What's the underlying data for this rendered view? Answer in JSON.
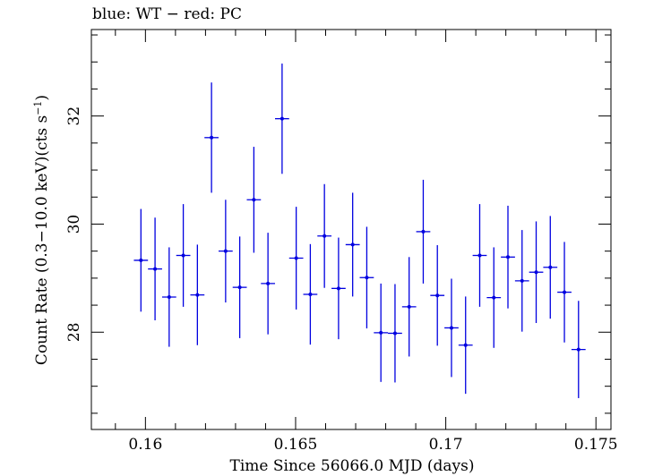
{
  "chart_data": {
    "type": "scatter",
    "title": "blue: WT − red: PC",
    "xlabel": "Time Since 56066.0 MJD (days)",
    "ylabel_main": "Count Rate (0.3−10.0 keV)(cts s",
    "ylabel_sup": "−1",
    "ylabel_end": ")",
    "xlim": [
      0.1582,
      0.1755
    ],
    "ylim": [
      26.2,
      33.6
    ],
    "xticks": [
      0.16,
      0.165,
      0.17,
      0.175
    ],
    "xtick_labels": [
      "0.16",
      "0.165",
      "0.17",
      "0.175"
    ],
    "yticks": [
      28,
      30,
      32
    ],
    "ytick_labels": [
      "28",
      "30",
      "32"
    ],
    "grid": false,
    "series": [
      {
        "color": "#0000e0",
        "x_halfwidth": 0.000235,
        "points": [
          {
            "x": 0.15985,
            "y": 29.33,
            "err": 0.95
          },
          {
            "x": 0.16032,
            "y": 29.17,
            "err": 0.95
          },
          {
            "x": 0.16079,
            "y": 28.65,
            "err": 0.92
          },
          {
            "x": 0.16126,
            "y": 29.42,
            "err": 0.95
          },
          {
            "x": 0.16173,
            "y": 28.69,
            "err": 0.93
          },
          {
            "x": 0.1622,
            "y": 31.6,
            "err": 1.02
          },
          {
            "x": 0.16267,
            "y": 29.5,
            "err": 0.95
          },
          {
            "x": 0.16314,
            "y": 28.83,
            "err": 0.94
          },
          {
            "x": 0.16361,
            "y": 30.45,
            "err": 0.98
          },
          {
            "x": 0.16408,
            "y": 28.9,
            "err": 0.94
          },
          {
            "x": 0.16455,
            "y": 31.95,
            "err": 1.02
          },
          {
            "x": 0.16502,
            "y": 29.37,
            "err": 0.95
          },
          {
            "x": 0.16549,
            "y": 28.7,
            "err": 0.93
          },
          {
            "x": 0.16596,
            "y": 29.78,
            "err": 0.96
          },
          {
            "x": 0.16643,
            "y": 28.81,
            "err": 0.94
          },
          {
            "x": 0.1669,
            "y": 29.62,
            "err": 0.96
          },
          {
            "x": 0.16737,
            "y": 29.01,
            "err": 0.94
          },
          {
            "x": 0.16784,
            "y": 27.99,
            "err": 0.91
          },
          {
            "x": 0.16831,
            "y": 27.98,
            "err": 0.91
          },
          {
            "x": 0.16878,
            "y": 28.47,
            "err": 0.92
          },
          {
            "x": 0.16925,
            "y": 29.86,
            "err": 0.96
          },
          {
            "x": 0.16972,
            "y": 28.68,
            "err": 0.93
          },
          {
            "x": 0.17019,
            "y": 28.08,
            "err": 0.91
          },
          {
            "x": 0.17066,
            "y": 27.76,
            "err": 0.9
          },
          {
            "x": 0.17113,
            "y": 29.42,
            "err": 0.95
          },
          {
            "x": 0.1716,
            "y": 28.64,
            "err": 0.93
          },
          {
            "x": 0.17207,
            "y": 29.39,
            "err": 0.95
          },
          {
            "x": 0.17254,
            "y": 28.95,
            "err": 0.94
          },
          {
            "x": 0.17301,
            "y": 29.11,
            "err": 0.94
          },
          {
            "x": 0.17348,
            "y": 29.2,
            "err": 0.95
          },
          {
            "x": 0.17395,
            "y": 28.74,
            "err": 0.93
          },
          {
            "x": 0.17442,
            "y": 27.68,
            "err": 0.9
          }
        ]
      }
    ]
  }
}
